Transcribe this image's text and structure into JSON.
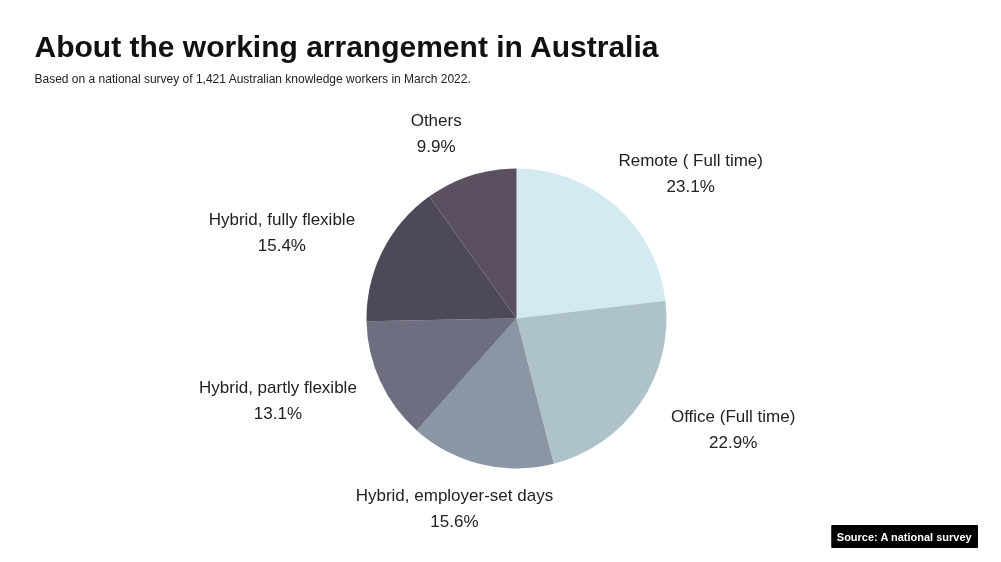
{
  "chart_data": {
    "type": "pie",
    "title": "About the working arrangement in Australia",
    "subtitle": "Based on a national survey of 1,421 Australian knowledge workers in March 2022.",
    "categories": [
      "Remote ( Full time)",
      "Office (Full time)",
      "Hybrid, employer-set days",
      "Hybrid, partly flexible",
      "Hybrid, fully flexible",
      "Others"
    ],
    "values": [
      23.1,
      22.9,
      15.6,
      13.1,
      15.4,
      9.9
    ],
    "colors": [
      "#d3eaf0",
      "#adc2cb",
      "#8b96a4",
      "#6d6f80",
      "#4d4958",
      "#5a5060"
    ],
    "value_labels": [
      "23.1%",
      "22.9%",
      "15.6%",
      "13.1%",
      "15.4%",
      "9.9%"
    ],
    "annotations": [
      "Source: A national survey"
    ]
  }
}
